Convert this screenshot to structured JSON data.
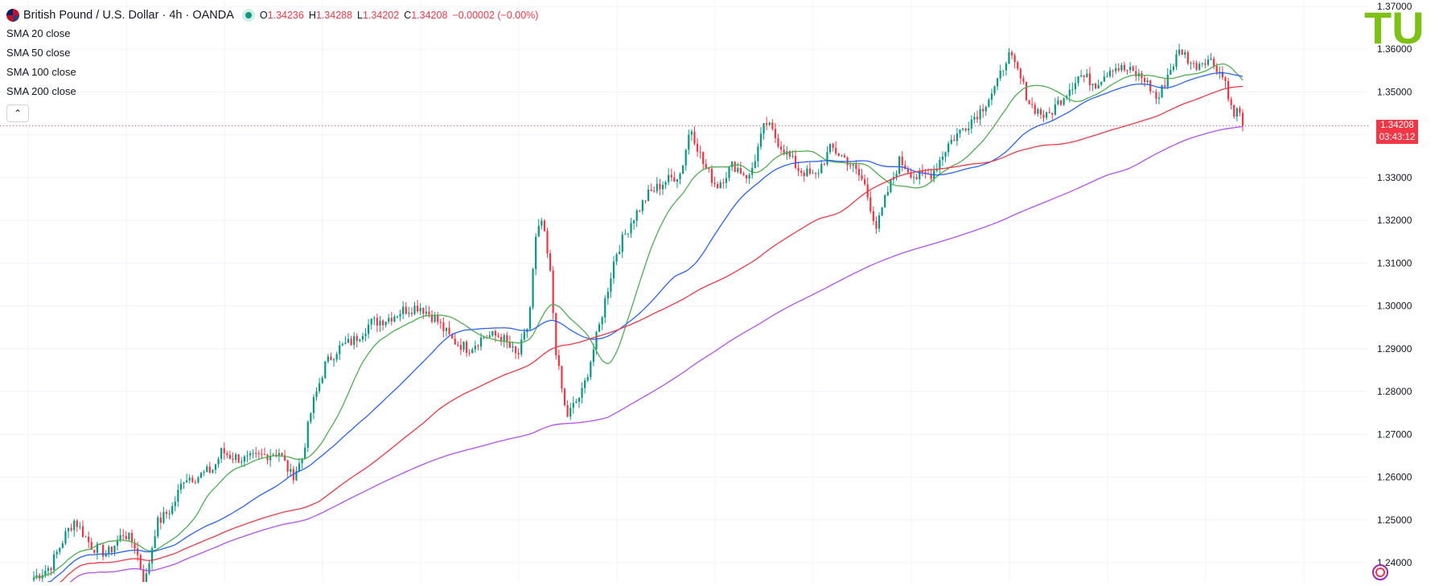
{
  "header": {
    "symbol_title": "British Pound / U.S. Dollar · 4h · OANDA",
    "ohlc": [
      {
        "key": "O",
        "value": "1.34236"
      },
      {
        "key": "H",
        "value": "1.34288"
      },
      {
        "key": "L",
        "value": "1.34202"
      },
      {
        "key": "C",
        "value": "1.34208"
      }
    ],
    "change": "−0.00002 (−0.00%)",
    "collapse_symbol": "⌃"
  },
  "indicators": [
    {
      "label": "SMA",
      "value": "20 close",
      "color": "#4caf50"
    },
    {
      "label": "SMA",
      "value": "50 close",
      "color": "#2962ff"
    },
    {
      "label": "SMA",
      "value": "100 close",
      "color": "#f23645"
    },
    {
      "label": "SMA",
      "value": "200 close",
      "color": "#b050f5"
    }
  ],
  "price_tag": {
    "price": "1.34208",
    "countdown": "03:43:12",
    "color": "#f23645"
  },
  "logo": {
    "text": "TU",
    "color": "#7cc114"
  },
  "colors": {
    "up": "#089981",
    "down": "#f23645",
    "grid": "#f0f3fa",
    "axis_text": "#131722"
  },
  "chart_data": {
    "type": "line",
    "y_axis": {
      "ticks": [
        "1.24000",
        "1.25000",
        "1.26000",
        "1.27000",
        "1.28000",
        "1.29000",
        "1.30000",
        "1.31000",
        "1.32000",
        "1.33000",
        "1.34000",
        "1.35000",
        "1.36000",
        "1.37000"
      ],
      "min": 1.2355,
      "max": 1.3715
    },
    "candles_count": 420,
    "last_price": 1.34208,
    "price_anchors": [
      [
        0,
        1.2365
      ],
      [
        10,
        1.239
      ],
      [
        20,
        1.247
      ],
      [
        25,
        1.25
      ],
      [
        35,
        1.244
      ],
      [
        45,
        1.242
      ],
      [
        55,
        1.247
      ],
      [
        62,
        1.244
      ],
      [
        68,
        1.235
      ],
      [
        75,
        1.249
      ],
      [
        85,
        1.253
      ],
      [
        92,
        1.26
      ],
      [
        100,
        1.26
      ],
      [
        110,
        1.262
      ],
      [
        115,
        1.266
      ],
      [
        120,
        1.265
      ],
      [
        130,
        1.264
      ],
      [
        140,
        1.265
      ],
      [
        150,
        1.266
      ],
      [
        158,
        1.26
      ],
      [
        164,
        1.264
      ],
      [
        170,
        1.276
      ],
      [
        178,
        1.286
      ],
      [
        186,
        1.29
      ],
      [
        196,
        1.292
      ],
      [
        206,
        1.296
      ],
      [
        216,
        1.297
      ],
      [
        226,
        1.299
      ],
      [
        236,
        1.3
      ],
      [
        246,
        1.297
      ],
      [
        256,
        1.292
      ],
      [
        266,
        1.29
      ],
      [
        276,
        1.293
      ],
      [
        286,
        1.293
      ],
      [
        296,
        1.288
      ],
      [
        303,
        1.296
      ],
      [
        307,
        1.315
      ],
      [
        311,
        1.32
      ],
      [
        316,
        1.308
      ],
      [
        320,
        1.288
      ],
      [
        326,
        1.274
      ],
      [
        336,
        1.28
      ],
      [
        346,
        1.295
      ],
      [
        356,
        1.312
      ],
      [
        366,
        1.32
      ],
      [
        376,
        1.326
      ],
      [
        386,
        1.329
      ],
      [
        396,
        1.331
      ],
      [
        402,
        1.342
      ],
      [
        410,
        1.333
      ],
      [
        418,
        1.328
      ],
      [
        428,
        1.333
      ],
      [
        438,
        1.33
      ],
      [
        448,
        1.343
      ],
      [
        458,
        1.337
      ],
      [
        468,
        1.332
      ],
      [
        478,
        1.33
      ],
      [
        488,
        1.337
      ],
      [
        498,
        1.334
      ],
      [
        508,
        1.329
      ],
      [
        516,
        1.318
      ],
      [
        522,
        1.326
      ],
      [
        530,
        1.334
      ],
      [
        540,
        1.33
      ],
      [
        550,
        1.331
      ],
      [
        560,
        1.338
      ],
      [
        570,
        1.342
      ],
      [
        580,
        1.346
      ],
      [
        590,
        1.352
      ],
      [
        596,
        1.359
      ],
      [
        602,
        1.355
      ],
      [
        610,
        1.347
      ],
      [
        620,
        1.344
      ],
      [
        630,
        1.349
      ],
      [
        640,
        1.354
      ],
      [
        650,
        1.352
      ],
      [
        660,
        1.356
      ],
      [
        670,
        1.355
      ],
      [
        680,
        1.353
      ],
      [
        688,
        1.348
      ],
      [
        694,
        1.354
      ],
      [
        702,
        1.36
      ],
      [
        710,
        1.356
      ],
      [
        718,
        1.358
      ],
      [
        724,
        1.356
      ],
      [
        730,
        1.352
      ],
      [
        734,
        1.344
      ],
      [
        737,
        1.346
      ],
      [
        740,
        1.3421
      ]
    ],
    "sma_periods": [
      20,
      50,
      100,
      200
    ],
    "sma_colors": [
      "#4caf50",
      "#2962ff",
      "#f23645",
      "#b050f5"
    ]
  }
}
